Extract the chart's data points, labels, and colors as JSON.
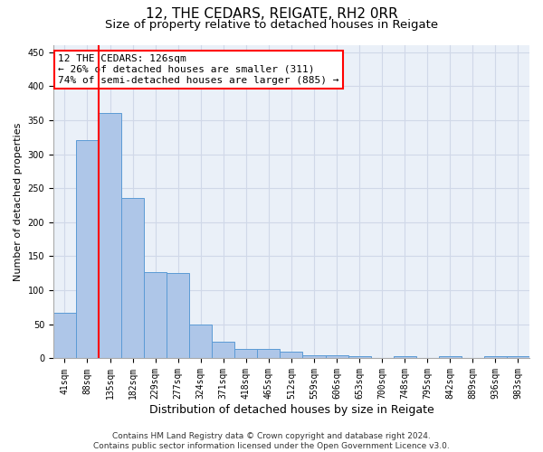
{
  "title": "12, THE CEDARS, REIGATE, RH2 0RR",
  "subtitle": "Size of property relative to detached houses in Reigate",
  "xlabel": "Distribution of detached houses by size in Reigate",
  "ylabel": "Number of detached properties",
  "categories": [
    "41sqm",
    "88sqm",
    "135sqm",
    "182sqm",
    "229sqm",
    "277sqm",
    "324sqm",
    "371sqm",
    "418sqm",
    "465sqm",
    "512sqm",
    "559sqm",
    "606sqm",
    "653sqm",
    "700sqm",
    "748sqm",
    "795sqm",
    "842sqm",
    "889sqm",
    "936sqm",
    "983sqm"
  ],
  "values": [
    67,
    320,
    360,
    235,
    127,
    126,
    50,
    24,
    14,
    14,
    10,
    5,
    5,
    3,
    0,
    3,
    0,
    3,
    0,
    3,
    3
  ],
  "bar_color": "#aec6e8",
  "bar_edge_color": "#5b9bd5",
  "vline_color": "red",
  "vline_pos": 1.5,
  "annotation_text": "12 THE CEDARS: 126sqm\n← 26% of detached houses are smaller (311)\n74% of semi-detached houses are larger (885) →",
  "annotation_box_color": "white",
  "annotation_box_edge": "red",
  "ylim": [
    0,
    460
  ],
  "yticks": [
    0,
    50,
    100,
    150,
    200,
    250,
    300,
    350,
    400,
    450
  ],
  "grid_color": "#d0d8e8",
  "bg_color": "#eaf0f8",
  "footnote": "Contains HM Land Registry data © Crown copyright and database right 2024.\nContains public sector information licensed under the Open Government Licence v3.0.",
  "title_fontsize": 11,
  "subtitle_fontsize": 9.5,
  "xlabel_fontsize": 9,
  "ylabel_fontsize": 8,
  "tick_fontsize": 7,
  "annot_fontsize": 8,
  "footnote_fontsize": 6.5
}
